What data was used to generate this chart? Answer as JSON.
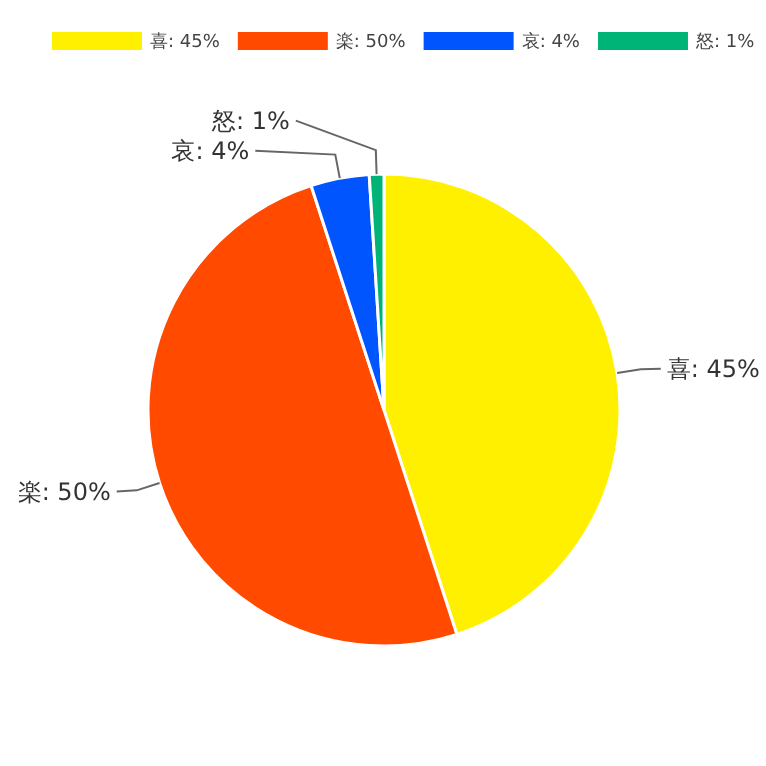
{
  "chart_data": {
    "type": "pie",
    "categories": [
      "喜",
      "楽",
      "哀",
      "怒"
    ],
    "values": [
      45,
      50,
      4,
      1
    ],
    "colors": [
      "#fff000",
      "#ff4a00",
      "#0055ff",
      "#00b377"
    ],
    "value_labels": [
      "45%",
      "50%",
      "4%",
      "1%"
    ],
    "legend": "top"
  }
}
